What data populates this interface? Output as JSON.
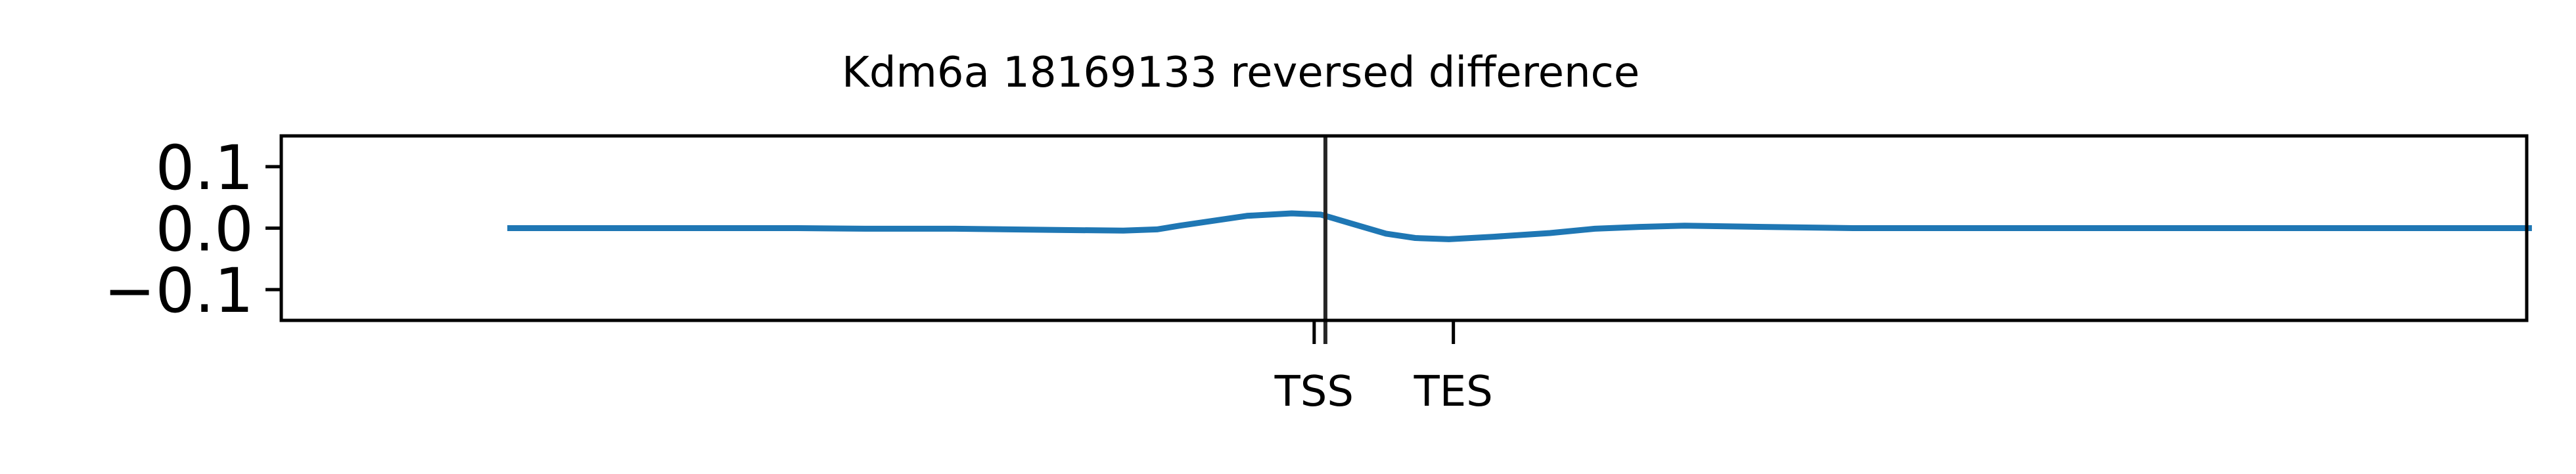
{
  "chart_data": {
    "type": "line",
    "title": "Kdm6a 18169133 reversed difference",
    "xlabel": "",
    "ylabel": "",
    "ylim": [
      -0.15,
      0.15
    ],
    "xlim": [
      0,
      1000
    ],
    "yticks": [
      {
        "value": 0.1,
        "label": "0.1"
      },
      {
        "value": 0.0,
        "label": "0.0"
      },
      {
        "value": -0.1,
        "label": "−0.1"
      }
    ],
    "xticks": [
      {
        "value": 460,
        "label": "TSS"
      },
      {
        "value": 522,
        "label": "TES"
      }
    ],
    "vline_x": 465,
    "grid": false,
    "series_color": "#1f77b4",
    "series": [
      {
        "x": [
          102,
          150,
          200,
          230,
          260,
          300,
          345,
          375,
          390,
          400,
          415,
          430,
          450,
          463,
          478,
          492,
          505,
          520,
          540,
          565,
          585,
          605,
          625,
          660,
          700,
          800,
          900,
          1001
        ],
        "y": [
          0.0,
          0.0,
          0.0,
          0.0,
          -0.001,
          -0.001,
          -0.003,
          -0.004,
          -0.002,
          0.004,
          0.012,
          0.02,
          0.024,
          0.022,
          0.006,
          -0.009,
          -0.016,
          -0.018,
          -0.014,
          -0.008,
          -0.001,
          0.002,
          0.004,
          0.002,
          0.0,
          0.0,
          0.0,
          0.0
        ]
      }
    ]
  }
}
